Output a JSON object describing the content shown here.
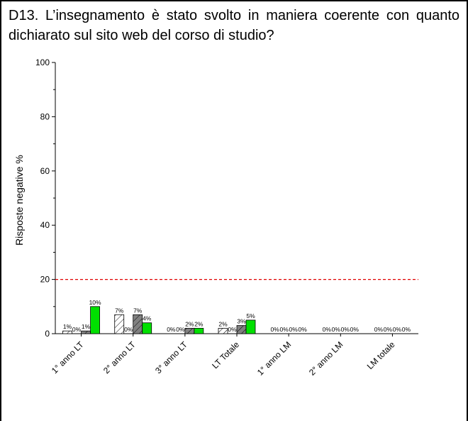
{
  "chart_data": {
    "type": "bar",
    "title": "D13. L’insegnamento è stato svolto in maniera coerente con quanto dichiarato sul sito web del corso di studio?",
    "y_label": "Risposte negative %",
    "categories": [
      "1° anno LT",
      "2° anno LT",
      "3° anno LT",
      "LT Totale",
      "1° anno LM",
      "2° anno LM",
      "LM totale"
    ],
    "series": [
      {
        "color": "#ffffff",
        "hatch": true,
        "values": [
          1,
          7,
          0,
          2,
          0,
          0,
          0
        ],
        "value_labels": [
          "1%",
          "7%",
          "0%",
          "2%",
          "0%",
          "0%",
          "0%"
        ]
      },
      {
        "color": "#ffffff",
        "hatch": false,
        "values": [
          0,
          0,
          0,
          0,
          0,
          0,
          0
        ],
        "value_labels": [
          "0%",
          "0%",
          "0%",
          "0%",
          "0%",
          "0%",
          "0%"
        ]
      },
      {
        "color": "#808080",
        "hatch": true,
        "values": [
          1,
          7,
          2,
          3,
          0,
          0,
          0
        ],
        "value_labels": [
          "1%",
          "7%",
          "2%",
          "3%",
          "0%",
          "0%",
          "0%"
        ]
      },
      {
        "color": "#00e000",
        "hatch": false,
        "values": [
          10,
          4,
          2,
          5,
          0,
          0,
          0
        ],
        "value_labels": [
          "10%",
          "4%",
          "2%",
          "5%",
          "0%",
          "0%",
          "0%"
        ]
      }
    ],
    "reference_line": {
      "value": 20,
      "color": "#e00000"
    },
    "ylim": [
      0,
      100
    ],
    "yticks": [
      0,
      20,
      40,
      60,
      80,
      100
    ]
  }
}
